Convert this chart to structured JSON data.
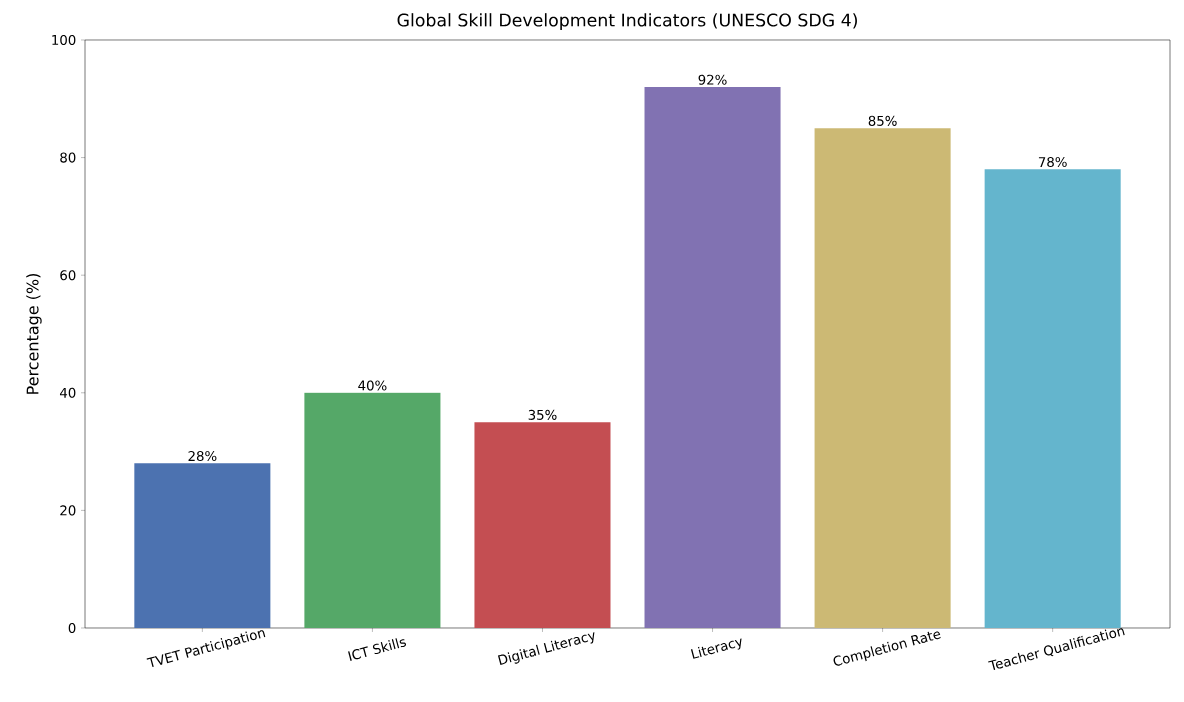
{
  "chart_data": {
    "type": "bar",
    "title": "Global Skill Development Indicators (UNESCO SDG 4)",
    "ylabel": "Percentage (%)",
    "categories": [
      "TVET Participation",
      "ICT Skills",
      "Digital Literacy",
      "Literacy",
      "Completion Rate",
      "Teacher Qualification"
    ],
    "values": [
      28,
      40,
      35,
      92,
      85,
      78
    ],
    "colors": [
      "#4c72b0",
      "#55a868",
      "#c44e52",
      "#8172b2",
      "#ccb974",
      "#64b5cd"
    ],
    "value_labels": [
      "28%",
      "40%",
      "35%",
      "92%",
      "85%",
      "78%"
    ],
    "ylim": [
      0,
      100
    ],
    "yticks": [
      0,
      20,
      40,
      60,
      80,
      100
    ]
  }
}
